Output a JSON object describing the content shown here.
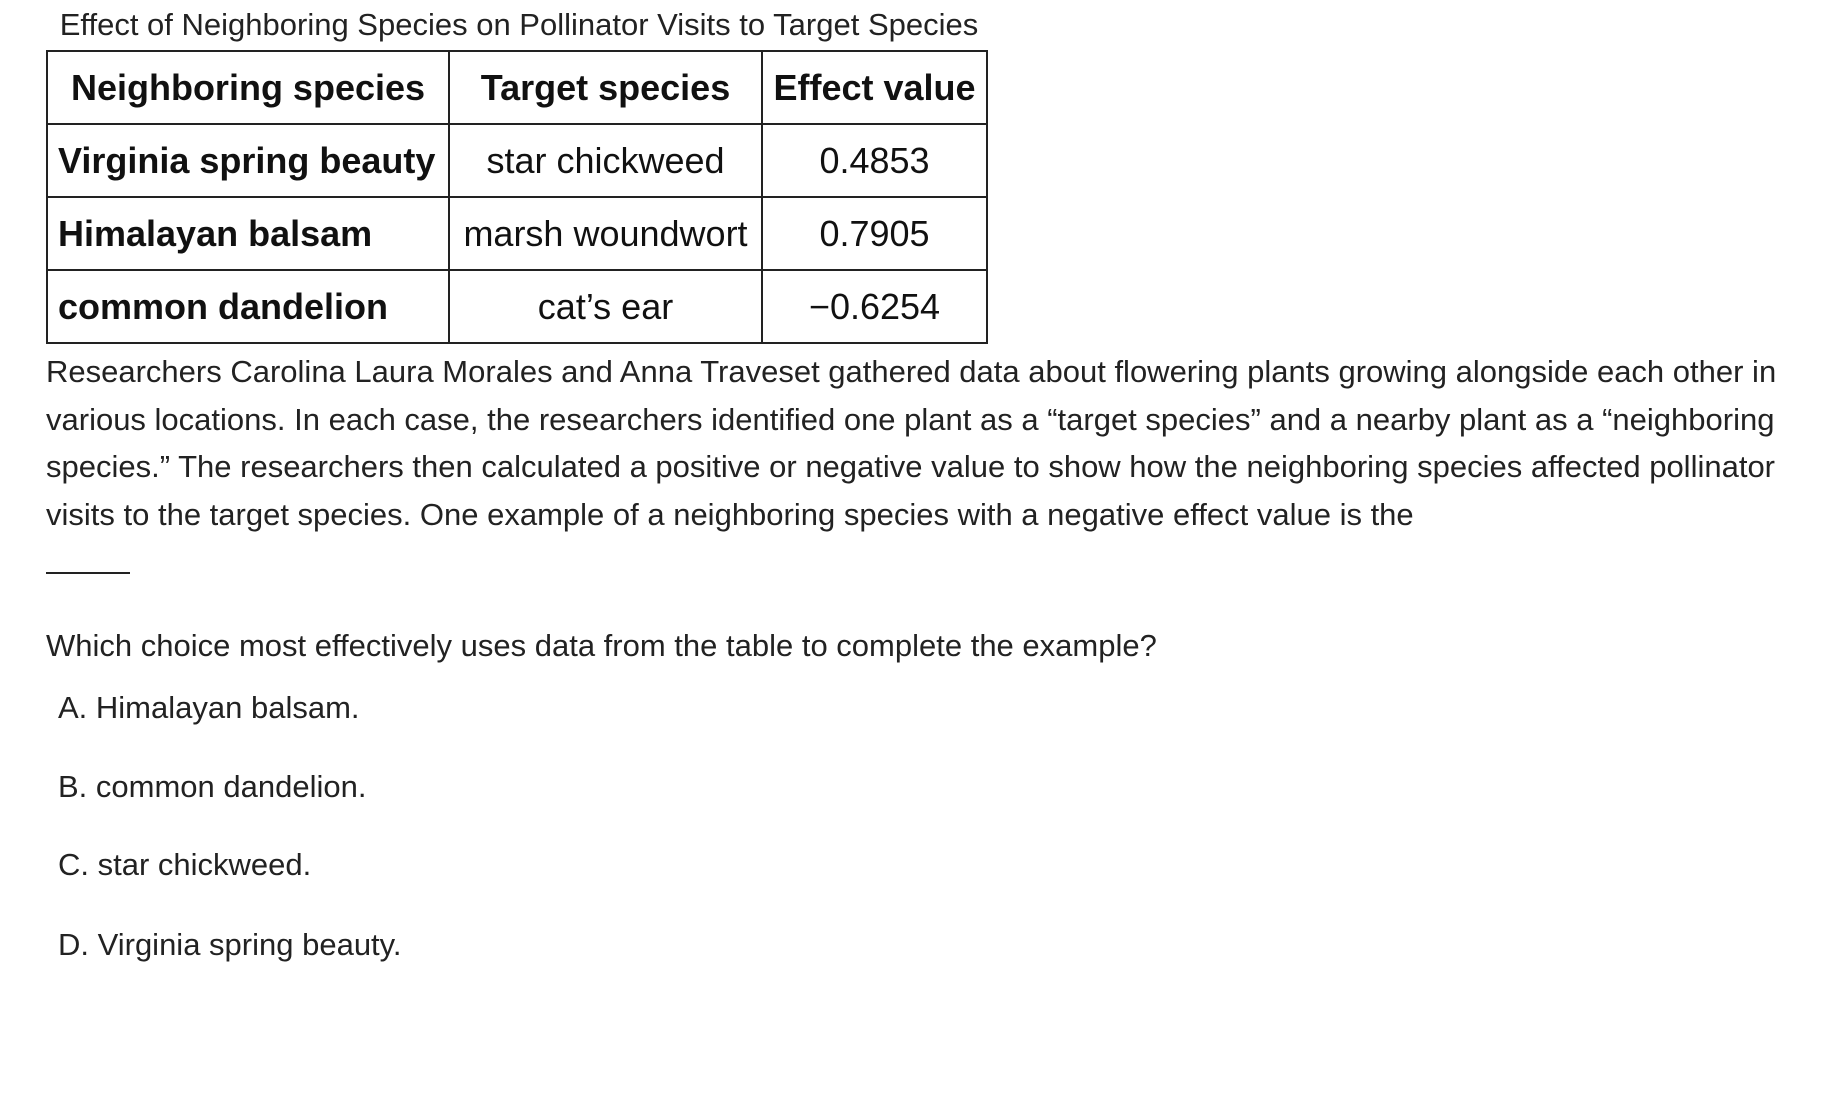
{
  "table": {
    "title": "Effect of Neighboring Species on Pollinator Visits to Target Species",
    "headers": [
      "Neighboring species",
      "Target species",
      "Effect value"
    ],
    "rows": [
      {
        "neighboring": "Virginia spring beauty",
        "target": "star chickweed",
        "effect": "0.4853"
      },
      {
        "neighboring": "Himalayan balsam",
        "target": "marsh woundwort",
        "effect": "0.7905"
      },
      {
        "neighboring": "common dandelion",
        "target": "cat’s ear",
        "effect": "−0.6254"
      }
    ]
  },
  "passage": {
    "text": "Researchers Carolina Laura Morales and Anna Traveset gathered data about flowering plants growing alongside each other in various locations. In each case, the researchers identified one plant as a “target species” and a nearby plant as a “neighboring species.” The researchers then calculated a positive or negative value to show how the neighboring species affected pollinator visits to the target species. One example of a neighboring species with a negative effect value is the"
  },
  "question": {
    "text": "Which choice most effectively uses data from the table to complete the example?",
    "choices": [
      {
        "label": "A. Himalayan balsam."
      },
      {
        "label": "B. common dandelion."
      },
      {
        "label": "C. star chickweed."
      },
      {
        "label": "D. Virginia spring beauty."
      }
    ]
  }
}
